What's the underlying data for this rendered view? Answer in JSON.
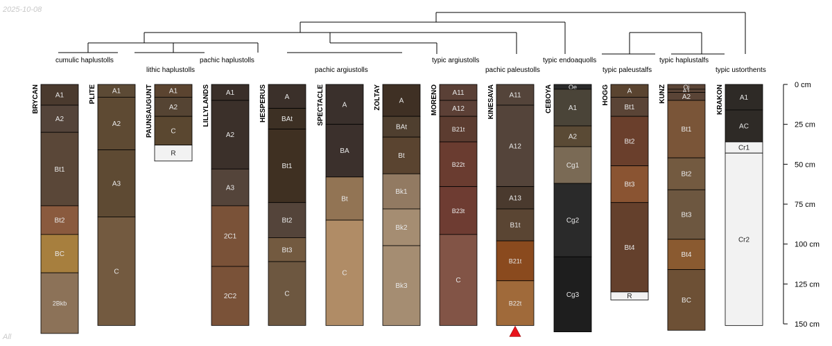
{
  "date_stamp": "2025-10-08",
  "corner_label": "All",
  "depth_unit": "cm",
  "depth_max": 150,
  "depth_ticks": [
    {
      "value": 0,
      "label": "0 cm"
    },
    {
      "value": 25,
      "label": "25 cm"
    },
    {
      "value": 50,
      "label": "50 cm"
    },
    {
      "value": 75,
      "label": "75 cm"
    },
    {
      "value": 100,
      "label": "100 cm"
    },
    {
      "value": 125,
      "label": "125 cm"
    },
    {
      "value": 150,
      "label": "150 cm"
    }
  ],
  "classification_labels": [
    "cumulic haplustolls",
    "lithic haplustolls",
    "pachic haplustolls",
    "pachic argiustolls",
    "typic argiustolls",
    "pachic paleustolls",
    "typic endoaquolls",
    "typic paleustalfs",
    "typic haplustalfs",
    "typic ustorthents"
  ],
  "profiles": [
    {
      "name": "BRYCAN",
      "marker": false,
      "horizons": [
        {
          "label": "A1",
          "top": 0,
          "bottom": 13,
          "color": "#4a3a2e"
        },
        {
          "label": "A2",
          "top": 13,
          "bottom": 30,
          "color": "#54443a"
        },
        {
          "label": "Bt1",
          "top": 30,
          "bottom": 76,
          "color": "#5a4738"
        },
        {
          "label": "Bt2",
          "top": 76,
          "bottom": 94,
          "color": "#8a5a3e"
        },
        {
          "label": "BC",
          "top": 94,
          "bottom": 118,
          "color": "#a77f3e"
        },
        {
          "label": "2Bkb",
          "top": 118,
          "bottom": 156,
          "color": "#8c7258"
        }
      ]
    },
    {
      "name": "PLITE",
      "marker": false,
      "horizons": [
        {
          "label": "A1",
          "top": 0,
          "bottom": 8,
          "color": "#5c4a35"
        },
        {
          "label": "A2",
          "top": 8,
          "bottom": 41,
          "color": "#5e4a33"
        },
        {
          "label": "A3",
          "top": 41,
          "bottom": 83,
          "color": "#5e4a33"
        },
        {
          "label": "C",
          "top": 83,
          "bottom": 151,
          "color": "#735a40"
        }
      ]
    },
    {
      "name": "PAUNSAUGUNT",
      "marker": false,
      "horizons": [
        {
          "label": "A1",
          "top": 0,
          "bottom": 8,
          "color": "#5b4430"
        },
        {
          "label": "A2",
          "top": 8,
          "bottom": 20,
          "color": "#554433"
        },
        {
          "label": "C",
          "top": 20,
          "bottom": 38,
          "color": "#5a4730"
        },
        {
          "label": "R",
          "top": 38,
          "bottom": 48,
          "color": "#f2f2f2"
        }
      ]
    },
    {
      "name": "LILLYLANDS",
      "marker": false,
      "horizons": [
        {
          "label": "A1",
          "top": 0,
          "bottom": 10,
          "color": "#3a2f29"
        },
        {
          "label": "A2",
          "top": 10,
          "bottom": 53,
          "color": "#3b302a"
        },
        {
          "label": "A3",
          "top": 53,
          "bottom": 76,
          "color": "#54443a"
        },
        {
          "label": "2C1",
          "top": 76,
          "bottom": 114,
          "color": "#7a5238"
        },
        {
          "label": "2C2",
          "top": 114,
          "bottom": 151,
          "color": "#7a5238"
        }
      ]
    },
    {
      "name": "HESPERUS",
      "marker": false,
      "horizons": [
        {
          "label": "A",
          "top": 0,
          "bottom": 15,
          "color": "#3b302a"
        },
        {
          "label": "BAt",
          "top": 15,
          "bottom": 28,
          "color": "#3d3024"
        },
        {
          "label": "Bt1",
          "top": 28,
          "bottom": 74,
          "color": "#3f3022"
        },
        {
          "label": "Bt2",
          "top": 74,
          "bottom": 96,
          "color": "#54443a"
        },
        {
          "label": "Bt3",
          "top": 96,
          "bottom": 111,
          "color": "#735a40"
        },
        {
          "label": "C",
          "top": 111,
          "bottom": 151,
          "color": "#6d5740"
        }
      ]
    },
    {
      "name": "SPECTACLE",
      "marker": false,
      "horizons": [
        {
          "label": "A",
          "top": 0,
          "bottom": 25,
          "color": "#3a302c"
        },
        {
          "label": "BA",
          "top": 25,
          "bottom": 58,
          "color": "#3b302c"
        },
        {
          "label": "Bt",
          "top": 58,
          "bottom": 85,
          "color": "#927454"
        },
        {
          "label": "C",
          "top": 85,
          "bottom": 151,
          "color": "#b08c66"
        }
      ]
    },
    {
      "name": "ZOLTAY",
      "marker": false,
      "horizons": [
        {
          "label": "A",
          "top": 0,
          "bottom": 20,
          "color": "#3f3024"
        },
        {
          "label": "BAt",
          "top": 20,
          "bottom": 33,
          "color": "#4f3f2f"
        },
        {
          "label": "Bt",
          "top": 33,
          "bottom": 56,
          "color": "#5a4430"
        },
        {
          "label": "Bk1",
          "top": 56,
          "bottom": 78,
          "color": "#927a62"
        },
        {
          "label": "Bk2",
          "top": 78,
          "bottom": 101,
          "color": "#a58d72"
        },
        {
          "label": "Bk3",
          "top": 101,
          "bottom": 151,
          "color": "#a58d72"
        }
      ]
    },
    {
      "name": "MORENO",
      "marker": false,
      "horizons": [
        {
          "label": "A11",
          "top": 0,
          "bottom": 10,
          "color": "#5a4036"
        },
        {
          "label": "A12",
          "top": 10,
          "bottom": 20,
          "color": "#5c4036"
        },
        {
          "label": "B21t",
          "top": 20,
          "bottom": 36,
          "color": "#5c3c30"
        },
        {
          "label": "B22t",
          "top": 36,
          "bottom": 64,
          "color": "#6a3c30"
        },
        {
          "label": "B23t",
          "top": 64,
          "bottom": 94,
          "color": "#6e3c32"
        },
        {
          "label": "C",
          "top": 94,
          "bottom": 151,
          "color": "#825446"
        }
      ]
    },
    {
      "name": "KINESAVA",
      "marker": true,
      "horizons": [
        {
          "label": "A11",
          "top": 0,
          "bottom": 13,
          "color": "#54443a"
        },
        {
          "label": "A12",
          "top": 13,
          "bottom": 64,
          "color": "#54443a"
        },
        {
          "label": "A13",
          "top": 64,
          "bottom": 78,
          "color": "#4a3a2e"
        },
        {
          "label": "B1t",
          "top": 78,
          "bottom": 98,
          "color": "#5a4533"
        },
        {
          "label": "B21t",
          "top": 98,
          "bottom": 123,
          "color": "#8a4a1e"
        },
        {
          "label": "B22t",
          "top": 123,
          "bottom": 151,
          "color": "#a06a3a"
        }
      ]
    },
    {
      "name": "CEBOYA",
      "marker": false,
      "horizons": [
        {
          "label": "Oe",
          "top": 0,
          "bottom": 3,
          "color": "#2a2a2a"
        },
        {
          "label": "A1",
          "top": 3,
          "bottom": 26,
          "color": "#4a4438"
        },
        {
          "label": "A2",
          "top": 26,
          "bottom": 39,
          "color": "#5a4a35"
        },
        {
          "label": "Cg1",
          "top": 39,
          "bottom": 62,
          "color": "#7a6a55"
        },
        {
          "label": "Cg2",
          "top": 62,
          "bottom": 108,
          "color": "#2a2a2a"
        },
        {
          "label": "Cg3",
          "top": 108,
          "bottom": 155,
          "color": "#1e1e1e"
        }
      ]
    },
    {
      "name": "HOGG",
      "marker": false,
      "horizons": [
        {
          "label": "A",
          "top": 0,
          "bottom": 8,
          "color": "#5a4430"
        },
        {
          "label": "Bt1",
          "top": 8,
          "bottom": 20,
          "color": "#5a4436"
        },
        {
          "label": "Bt2",
          "top": 20,
          "bottom": 51,
          "color": "#6a3f2c"
        },
        {
          "label": "Bt3",
          "top": 51,
          "bottom": 74,
          "color": "#8a5432"
        },
        {
          "label": "Bt4",
          "top": 74,
          "bottom": 130,
          "color": "#64402c"
        },
        {
          "label": "R",
          "top": 130,
          "bottom": 135,
          "color": "#f2f2f2"
        }
      ]
    },
    {
      "name": "KUNZ",
      "marker": false,
      "horizons": [
        {
          "label": "Oi",
          "top": 0,
          "bottom": 3,
          "color": "#5a4436"
        },
        {
          "label": "A1",
          "top": 3,
          "bottom": 5,
          "color": "#5a4436"
        },
        {
          "label": "A2",
          "top": 5,
          "bottom": 10,
          "color": "#5a4436"
        },
        {
          "label": "Bt1",
          "top": 10,
          "bottom": 46,
          "color": "#7a5538"
        },
        {
          "label": "Bt2",
          "top": 46,
          "bottom": 66,
          "color": "#735a40"
        },
        {
          "label": "Bt3",
          "top": 66,
          "bottom": 97,
          "color": "#6d5740"
        },
        {
          "label": "Bt4",
          "top": 97,
          "bottom": 116,
          "color": "#8a5a30"
        },
        {
          "label": "BC",
          "top": 116,
          "bottom": 154,
          "color": "#6d5035"
        }
      ]
    },
    {
      "name": "KRAKON",
      "marker": false,
      "horizons": [
        {
          "label": "A1",
          "top": 0,
          "bottom": 16,
          "color": "#2e2a26"
        },
        {
          "label": "AC",
          "top": 16,
          "bottom": 36,
          "color": "#2e2a26"
        },
        {
          "label": "Cr1",
          "top": 36,
          "bottom": 43,
          "color": "#f2f2f2"
        },
        {
          "label": "Cr2",
          "top": 43,
          "bottom": 151,
          "color": "#f2f2f2"
        }
      ]
    }
  ]
}
